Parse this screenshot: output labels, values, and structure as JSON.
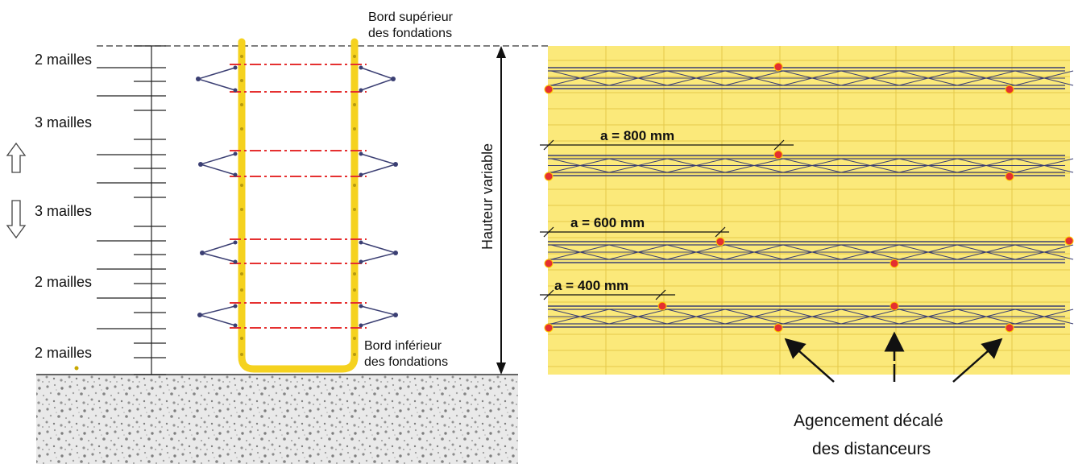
{
  "left_diagram": {
    "top_edge_label": [
      "Bord supérieur",
      "des fondations"
    ],
    "bottom_edge_label": [
      "Bord inférieur",
      "des fondations"
    ],
    "height_label": "Hauteur variable",
    "mesh_labels": [
      "2 mailles",
      "3 mailles",
      "3 mailles",
      "2 mailles",
      "2 mailles"
    ]
  },
  "right_diagram": {
    "dimension_labels": [
      "a = 800 mm",
      "a = 600 mm",
      "a = 400 mm"
    ],
    "caption": [
      "Agencement décalé",
      "des distanceurs"
    ]
  },
  "colors": {
    "rebar_yellow": "#f5d21f",
    "panel_yellow": "#fbe97a",
    "spacer_red": "#e53030",
    "truss_navy": "#3b3f73",
    "ground_gray": "#cfcfcf"
  }
}
